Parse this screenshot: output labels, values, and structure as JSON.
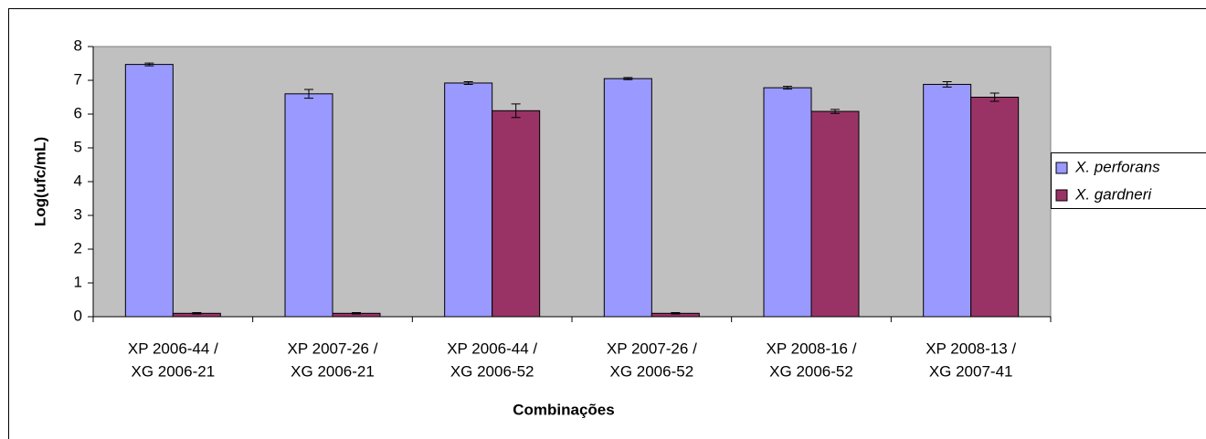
{
  "chart_data": {
    "type": "bar",
    "x_label": "Combinações",
    "y_label": "Log(ufc/mL)",
    "categories": [
      [
        "XP 2006-44 /",
        "XG 2006-21"
      ],
      [
        "XP 2007-26 /",
        "XG 2006-21"
      ],
      [
        "XP 2006-44 /",
        "XG 2006-52"
      ],
      [
        "XP 2007-26 /",
        "XG 2006-52"
      ],
      [
        "XP 2008-16 /",
        "XG 2006-52"
      ],
      [
        "XP 2008-13 /",
        "XG 2007-41"
      ]
    ],
    "series": [
      {
        "name": "X. perforans",
        "color": "#9999ff",
        "values": [
          7.47,
          6.6,
          6.92,
          7.05,
          6.78,
          6.88
        ],
        "errors": [
          0.04,
          0.13,
          0.04,
          0.03,
          0.04,
          0.08
        ]
      },
      {
        "name": "X. gardneri",
        "color": "#993366",
        "values": [
          0.1,
          0.1,
          6.1,
          0.1,
          6.08,
          6.5
        ],
        "errors": [
          0.02,
          0.02,
          0.2,
          0.02,
          0.06,
          0.12
        ]
      }
    ],
    "ylim": [
      0,
      8
    ],
    "yticks": [
      0,
      1,
      2,
      3,
      4,
      5,
      6,
      7,
      8
    ],
    "plot_background": "#c0c0c0",
    "legend": "right"
  }
}
